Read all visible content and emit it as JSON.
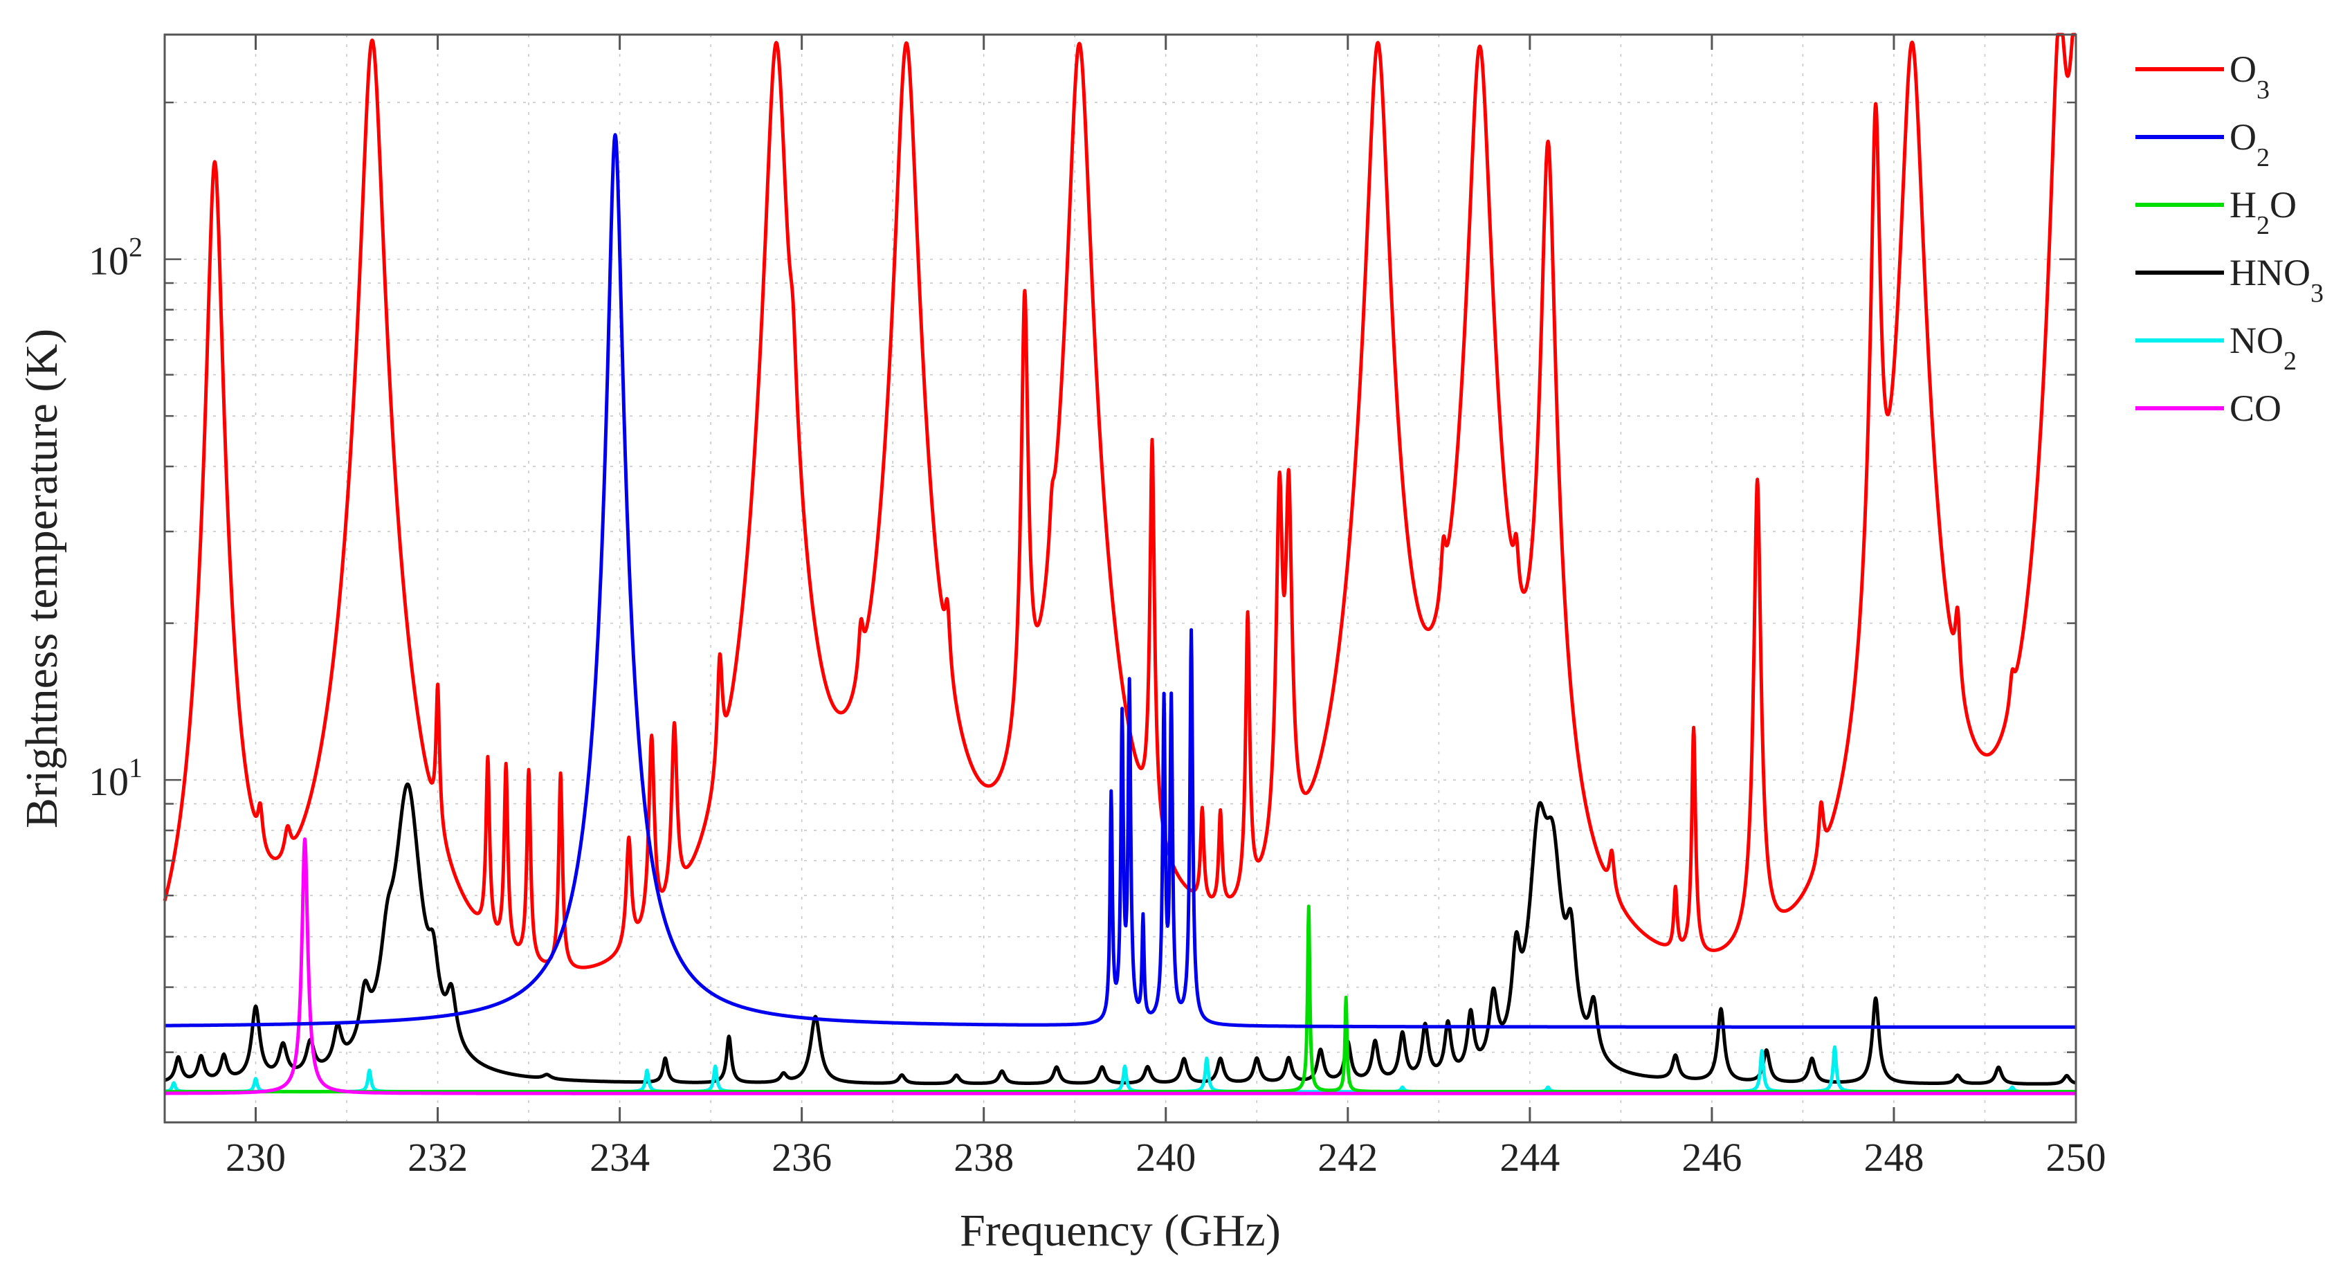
{
  "chart_data": {
    "type": "line",
    "title": "",
    "xlabel": "Frequency (GHz)",
    "ylabel": "Brightness temperature (K)",
    "xlim": [
      229,
      250
    ],
    "ylim": [
      2.2,
      270
    ],
    "yscale": "log",
    "grid": true,
    "legend_position": "right",
    "x_ticks": [
      230,
      232,
      234,
      236,
      238,
      240,
      242,
      244,
      246,
      248,
      250
    ],
    "x_tick_labels": [
      "230",
      "232",
      "234",
      "236",
      "238",
      "240",
      "242",
      "244",
      "246",
      "248",
      "250"
    ],
    "y_tick_labels": [
      {
        "value": 10,
        "base": "10",
        "exp": "1"
      },
      {
        "value": 100,
        "base": "10",
        "exp": "2"
      }
    ],
    "series": [
      {
        "name": "O3",
        "label_main": "O",
        "label_sub": "3",
        "label_tail": "",
        "color": "#ff0000",
        "baseline": 2.8,
        "lines": [
          [
            229.55,
            150,
            0.07
          ],
          [
            230.05,
            1.4,
            0.03
          ],
          [
            230.35,
            1.0,
            0.04
          ],
          [
            231.28,
            260,
            0.1
          ],
          [
            232.0,
            7.0,
            0.02
          ],
          [
            232.55,
            6.0,
            0.02
          ],
          [
            232.75,
            6.0,
            0.02
          ],
          [
            233.0,
            6.0,
            0.02
          ],
          [
            233.35,
            6.0,
            0.02
          ],
          [
            234.1,
            3.0,
            0.03
          ],
          [
            234.35,
            7.0,
            0.03
          ],
          [
            234.6,
            7.0,
            0.03
          ],
          [
            235.1,
            7.0,
            0.03
          ],
          [
            235.72,
            255,
            0.1
          ],
          [
            235.9,
            20,
            0.04
          ],
          [
            236.65,
            4.0,
            0.03
          ],
          [
            237.15,
            255,
            0.1
          ],
          [
            237.6,
            5.0,
            0.03
          ],
          [
            238.45,
            75,
            0.03
          ],
          [
            238.75,
            6.0,
            0.03
          ],
          [
            239.05,
            255,
            0.1
          ],
          [
            239.85,
            37,
            0.02
          ],
          [
            240.4,
            3.0,
            0.02
          ],
          [
            240.6,
            3.0,
            0.02
          ],
          [
            240.9,
            15,
            0.02
          ],
          [
            241.25,
            30,
            0.03
          ],
          [
            241.35,
            30,
            0.03
          ],
          [
            242.33,
            255,
            0.1
          ],
          [
            243.05,
            6.0,
            0.03
          ],
          [
            243.45,
            250,
            0.1
          ],
          [
            243.85,
            6.0,
            0.03
          ],
          [
            244.2,
            160,
            0.06
          ],
          [
            244.9,
            1.2,
            0.03
          ],
          [
            245.6,
            1.5,
            0.02
          ],
          [
            245.8,
            8.0,
            0.02
          ],
          [
            246.5,
            33,
            0.03
          ],
          [
            247.2,
            2.0,
            0.03
          ],
          [
            247.8,
            180,
            0.04
          ],
          [
            248.2,
            255,
            0.1
          ],
          [
            248.7,
            6.0,
            0.03
          ],
          [
            249.3,
            2.0,
            0.03
          ],
          [
            249.82,
            250,
            0.08
          ],
          [
            250.0,
            250,
            0.08
          ]
        ]
      },
      {
        "name": "O2",
        "label_main": "O",
        "label_sub": "2",
        "label_tail": "",
        "color": "#0000ee",
        "baseline": 3.35,
        "lines": [
          [
            233.95,
            170,
            0.06
          ],
          [
            239.4,
            6.0,
            0.012
          ],
          [
            239.52,
            10.0,
            0.012
          ],
          [
            239.6,
            12.0,
            0.012
          ],
          [
            239.75,
            2.0,
            0.012
          ],
          [
            239.98,
            11.0,
            0.012
          ],
          [
            240.06,
            11.0,
            0.012
          ],
          [
            240.28,
            16.0,
            0.012
          ]
        ]
      },
      {
        "name": "H2O",
        "label_main": "H",
        "label_sub": "2",
        "label_tail": "O",
        "color": "#00dd00",
        "baseline": 2.52,
        "lines": [
          [
            241.57,
            3.2,
            0.012
          ],
          [
            241.98,
            1.3,
            0.012
          ]
        ]
      },
      {
        "name": "HNO3",
        "label_main": "HNO",
        "label_sub": "3",
        "label_tail": "",
        "color": "#000000",
        "baseline": 2.6,
        "lines": [
          [
            229.15,
            0.3,
            0.04
          ],
          [
            229.4,
            0.3,
            0.04
          ],
          [
            229.65,
            0.3,
            0.04
          ],
          [
            230.0,
            1.0,
            0.05
          ],
          [
            230.3,
            0.4,
            0.05
          ],
          [
            230.6,
            0.4,
            0.05
          ],
          [
            230.9,
            0.5,
            0.05
          ],
          [
            231.2,
            0.8,
            0.06
          ],
          [
            231.45,
            1.2,
            0.08
          ],
          [
            231.67,
            7.0,
            0.14
          ],
          [
            231.95,
            1.0,
            0.06
          ],
          [
            232.15,
            0.8,
            0.06
          ],
          [
            233.2,
            0.05,
            0.05
          ],
          [
            234.5,
            0.3,
            0.03
          ],
          [
            235.2,
            0.6,
            0.03
          ],
          [
            235.8,
            0.1,
            0.04
          ],
          [
            236.15,
            0.9,
            0.06
          ],
          [
            237.1,
            0.1,
            0.04
          ],
          [
            237.7,
            0.1,
            0.04
          ],
          [
            238.2,
            0.15,
            0.04
          ],
          [
            238.8,
            0.2,
            0.04
          ],
          [
            239.3,
            0.2,
            0.04
          ],
          [
            239.8,
            0.2,
            0.04
          ],
          [
            240.2,
            0.3,
            0.04
          ],
          [
            240.6,
            0.3,
            0.04
          ],
          [
            241.0,
            0.3,
            0.04
          ],
          [
            241.35,
            0.3,
            0.04
          ],
          [
            241.7,
            0.4,
            0.04
          ],
          [
            242.0,
            0.5,
            0.04
          ],
          [
            242.3,
            0.5,
            0.04
          ],
          [
            242.6,
            0.6,
            0.04
          ],
          [
            242.85,
            0.7,
            0.04
          ],
          [
            243.1,
            0.7,
            0.04
          ],
          [
            243.35,
            0.8,
            0.04
          ],
          [
            243.6,
            1.0,
            0.05
          ],
          [
            243.85,
            1.5,
            0.05
          ],
          [
            244.1,
            5.0,
            0.1
          ],
          [
            244.25,
            4.0,
            0.1
          ],
          [
            244.45,
            1.8,
            0.06
          ],
          [
            244.7,
            0.8,
            0.05
          ],
          [
            245.6,
            0.3,
            0.04
          ],
          [
            246.1,
            1.0,
            0.04
          ],
          [
            246.6,
            0.4,
            0.04
          ],
          [
            247.1,
            0.3,
            0.04
          ],
          [
            247.8,
            1.2,
            0.04
          ],
          [
            248.7,
            0.1,
            0.04
          ],
          [
            249.15,
            0.2,
            0.04
          ],
          [
            249.9,
            0.1,
            0.04
          ]
        ]
      },
      {
        "name": "NO2",
        "label_main": "NO",
        "label_sub": "2",
        "label_tail": "",
        "color": "#00f0f0",
        "baseline": 2.52,
        "lines": [
          [
            229.1,
            0.1,
            0.02
          ],
          [
            230.0,
            0.15,
            0.02
          ],
          [
            231.25,
            0.25,
            0.02
          ],
          [
            234.3,
            0.25,
            0.02
          ],
          [
            235.05,
            0.3,
            0.02
          ],
          [
            239.55,
            0.3,
            0.02
          ],
          [
            240.45,
            0.4,
            0.02
          ],
          [
            242.6,
            0.05,
            0.02
          ],
          [
            244.2,
            0.05,
            0.02
          ],
          [
            246.55,
            0.5,
            0.02
          ],
          [
            247.35,
            0.55,
            0.02
          ],
          [
            249.3,
            0.05,
            0.02
          ]
        ]
      },
      {
        "name": "CO",
        "label_main": "CO",
        "label_sub": "",
        "label_tail": "",
        "color": "#ff00ff",
        "baseline": 2.5,
        "lines": [
          [
            230.54,
            5.2,
            0.03
          ]
        ]
      }
    ]
  }
}
